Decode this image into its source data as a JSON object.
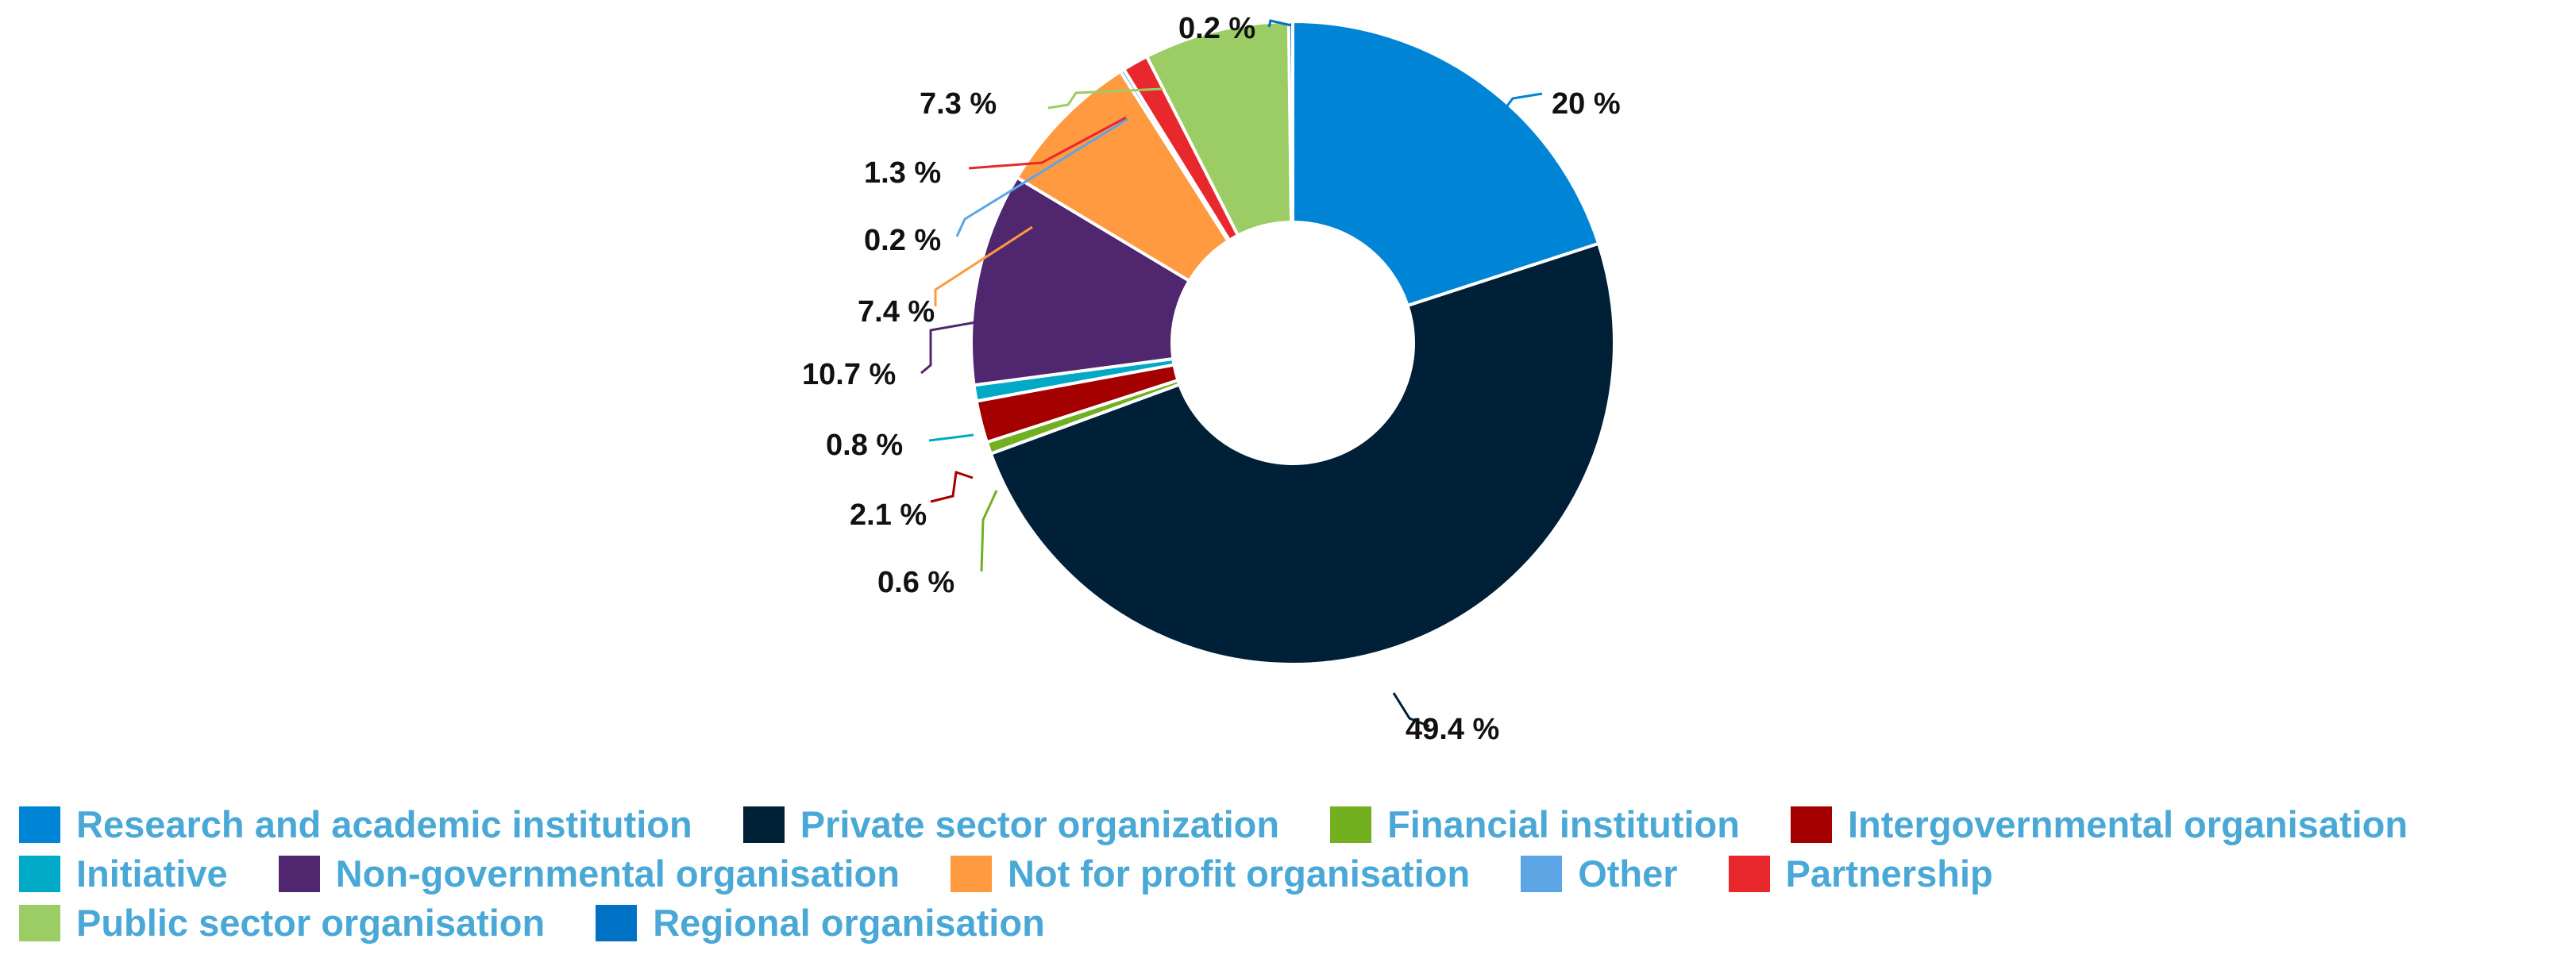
{
  "chart_data": {
    "type": "pie",
    "donut": true,
    "slices": [
      {
        "label": "Research and academic institution",
        "value": 20,
        "data_label": "20   %",
        "color": "#0084d6"
      },
      {
        "label": "Private sector organization",
        "value": 49.4,
        "data_label": "49.4 %",
        "color": "#002038"
      },
      {
        "label": "Financial institution",
        "value": 0.6,
        "data_label": "0.6 %",
        "color": "#72b020"
      },
      {
        "label": "Intergovernmental organisation",
        "value": 2.1,
        "data_label": "2.1 %",
        "color": "#a50000"
      },
      {
        "label": "Initiative",
        "value": 0.8,
        "data_label": "0.8 %",
        "color": "#00aac6"
      },
      {
        "label": "Non-governmental organisation",
        "value": 10.7,
        "data_label": "10.7 %",
        "color": "#50266e"
      },
      {
        "label": "Not for profit organisation",
        "value": 7.4,
        "data_label": "7.4 %",
        "color": "#ff9a40"
      },
      {
        "label": "Other",
        "value": 0.2,
        "data_label": "0.2 %",
        "color": "#5ca6e6"
      },
      {
        "label": "Partnership",
        "value": 1.3,
        "data_label": "1.3 %",
        "color": "#e8282c"
      },
      {
        "label": "Public sector organisation",
        "value": 7.3,
        "data_label": "7.3 %",
        "color": "#9ccc64"
      },
      {
        "label": "Regional organisation",
        "value": 0.2,
        "data_label": "0.2 %",
        "color": "#0072c6"
      }
    ],
    "legend_position": "bottom",
    "legend_text_color": "#4aa8d6"
  }
}
